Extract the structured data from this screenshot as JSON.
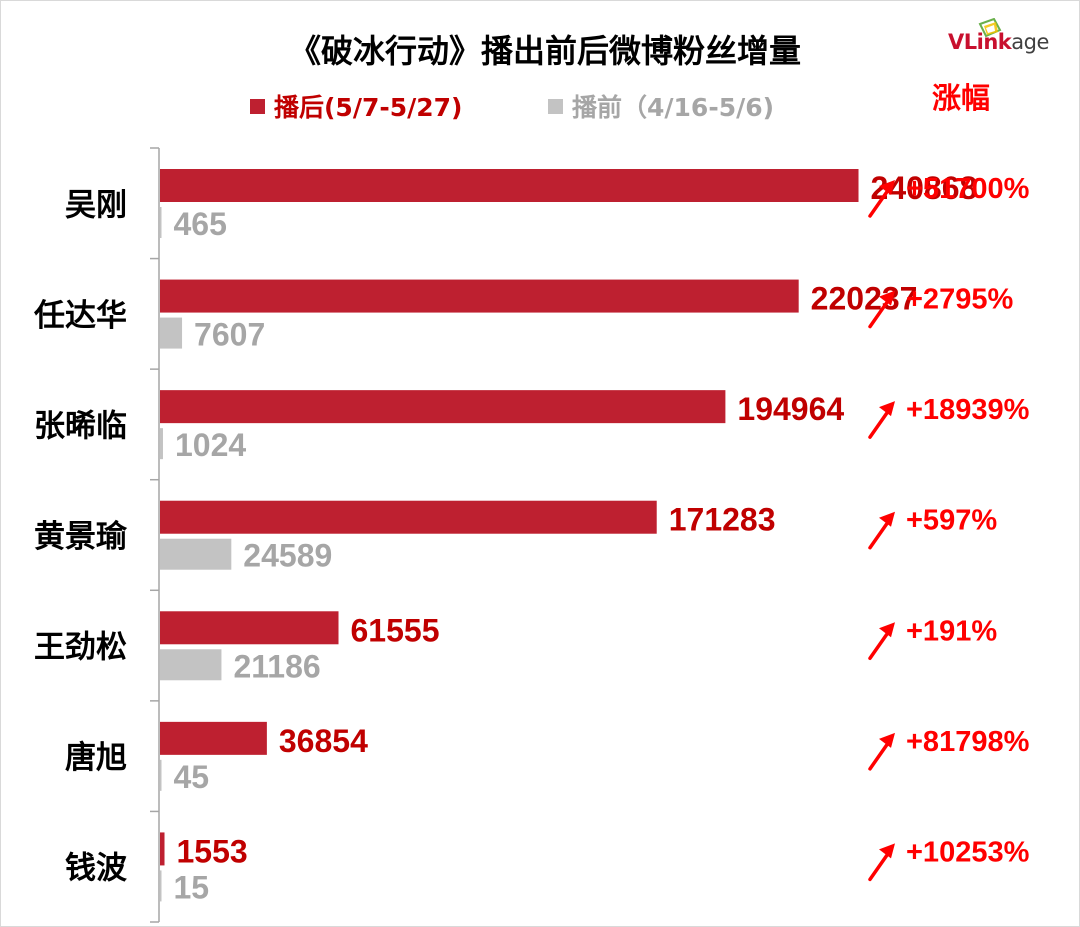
{
  "brand": {
    "logo_text": "VLinkage",
    "logo_first": "VLink",
    "logo_second": "age"
  },
  "colors": {
    "after": "#be2030",
    "before": "#c3c3c3",
    "after_label": "#c00000",
    "before_label": "#a6a6a6",
    "growth": "#ff0000",
    "axis": "#a6a6a6",
    "title": "#000000"
  },
  "growth_header": "涨幅",
  "growth_icon": "arrow-up-right-icon",
  "chart_data": {
    "type": "bar",
    "orientation": "horizontal",
    "title": "《破冰行动》播出前后微博粉丝增量",
    "legend_position": "top-center",
    "categories": [
      "吴刚",
      "任达华",
      "张晞临",
      "黄景瑜",
      "王劲松",
      "唐旭",
      "钱波"
    ],
    "series": [
      {
        "name": "播后(5/7-5/27)",
        "values": [
          240868,
          220237,
          194964,
          171283,
          61555,
          36854,
          1553
        ]
      },
      {
        "name": "播前（4/16-5/6)",
        "values": [
          465,
          7607,
          1024,
          24589,
          21186,
          45,
          15
        ]
      }
    ],
    "growth": [
      "+51700%",
      "+2795%",
      "+18939%",
      "+597%",
      "+191%",
      "+81798%",
      "+10253%"
    ],
    "xlim": [
      0,
      290000
    ],
    "grid": false
  }
}
